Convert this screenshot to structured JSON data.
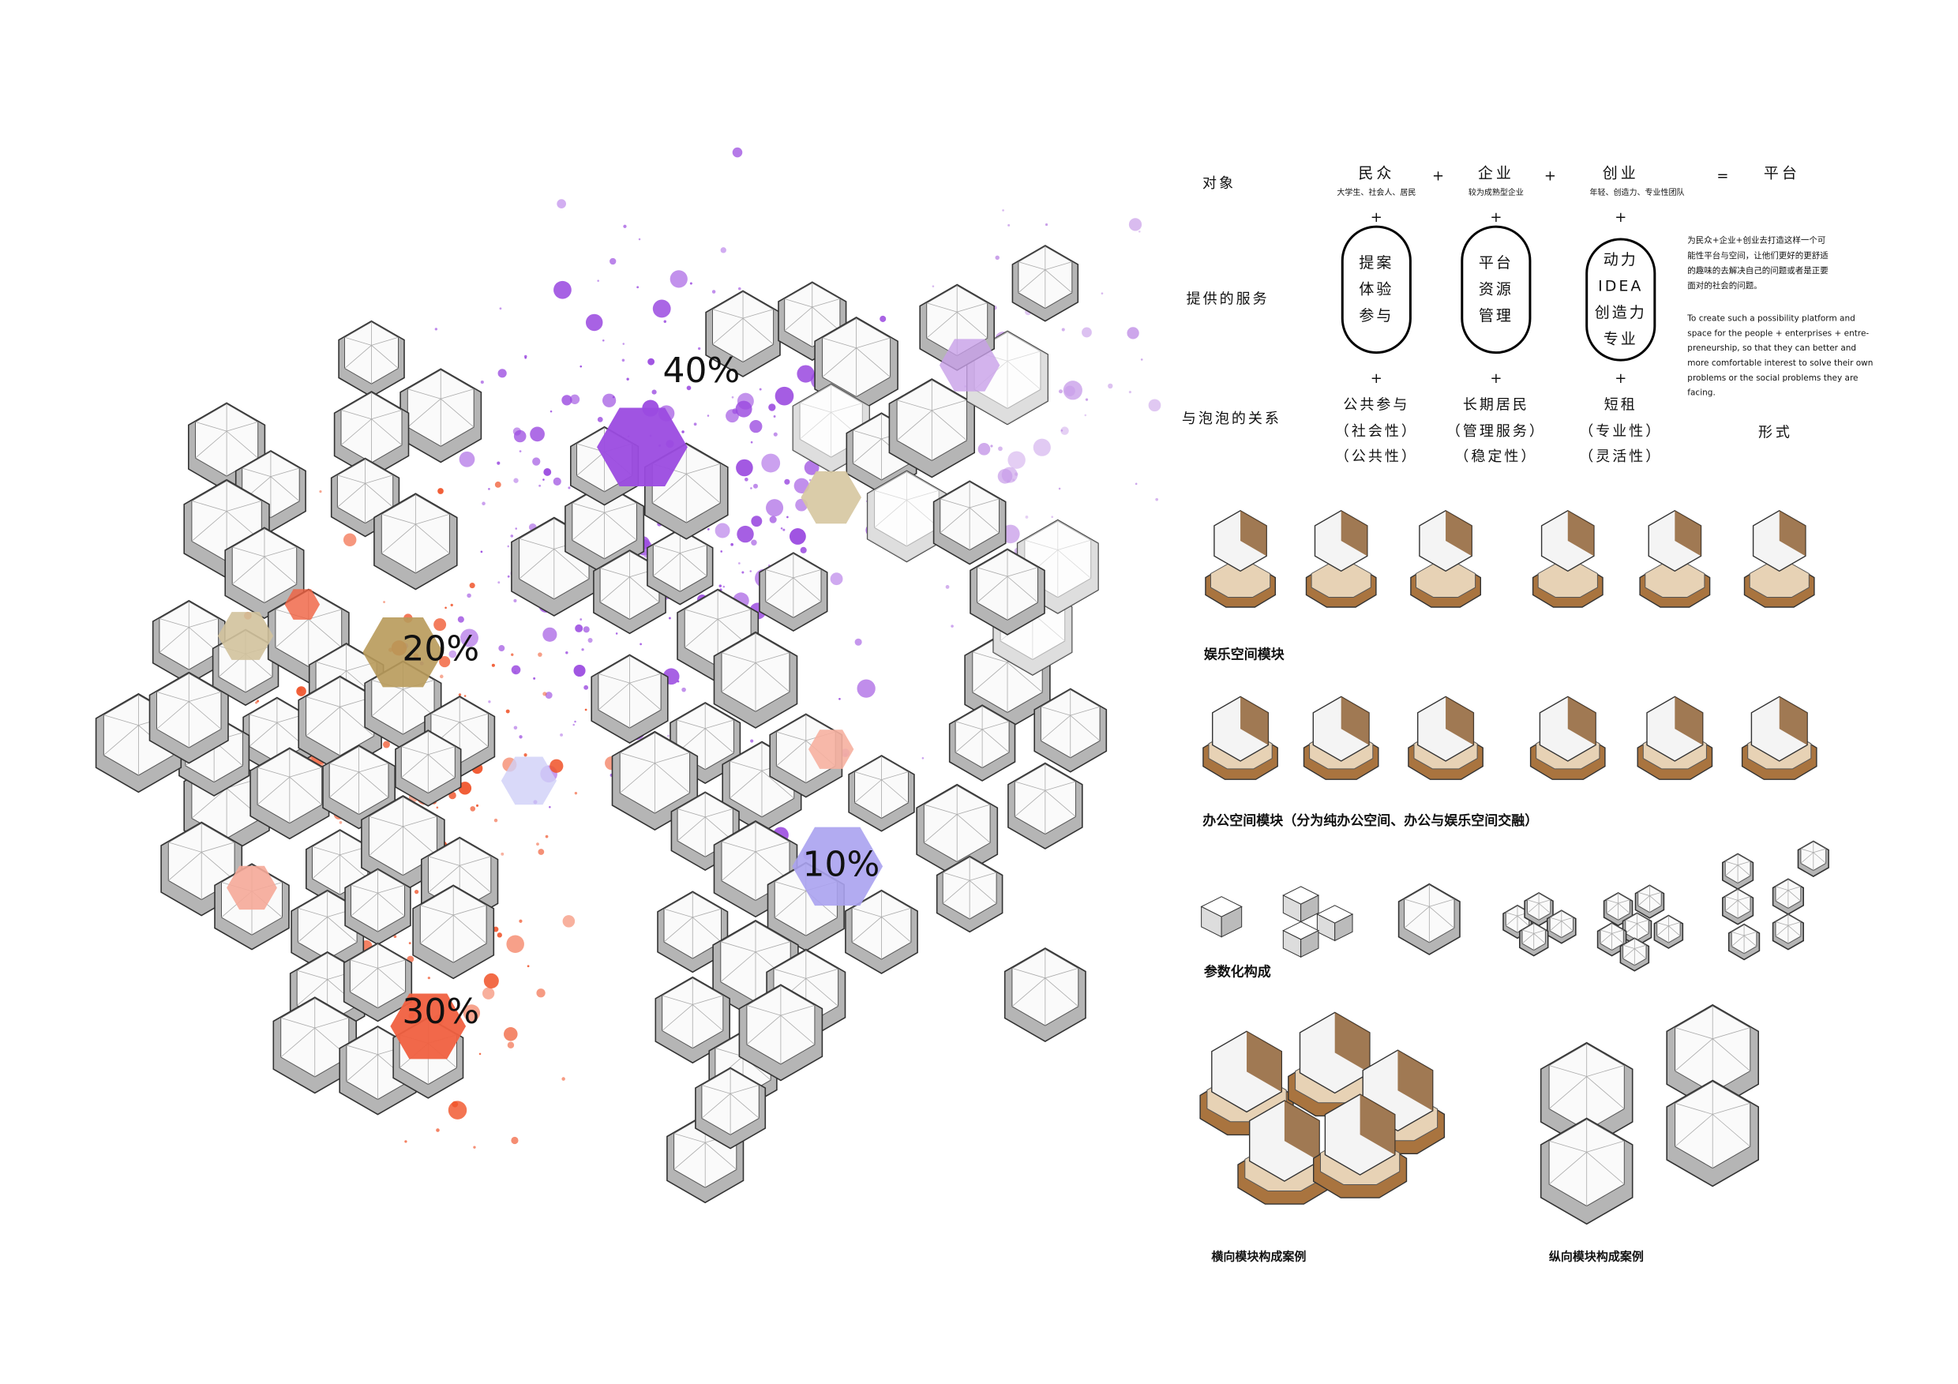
{
  "diagram": {
    "percent_labels": [
      "40%",
      "20%",
      "10%",
      "30%"
    ]
  },
  "table": {
    "row_labels": [
      "对象",
      "提供的服务",
      "与泡泡的关系"
    ],
    "columns": [
      {
        "name": "民众",
        "note": "大学生、社会人、居民",
        "services": [
          "提案",
          "体验",
          "参与"
        ],
        "relation": [
          "公共参与",
          "（社会性）",
          "（公共性）"
        ]
      },
      {
        "name": "企业",
        "note": "较为成熟型企业",
        "services": [
          "平台",
          "资源",
          "管理"
        ],
        "relation": [
          "长期居民",
          "（管理服务）",
          "（稳定性）"
        ]
      },
      {
        "name": "创业",
        "note": "年轻、创造力、专业性团队",
        "services": [
          "动力",
          "IDEA",
          "创造力",
          "专业"
        ],
        "relation": [
          "短租",
          "（专业性）",
          "（灵活性）"
        ]
      }
    ],
    "plus": "+",
    "equals": "=",
    "result": "平台",
    "form": "形式"
  },
  "description": {
    "zh": [
      "为民众+企业+创业去打造这样一个可",
      "能性平台与空间，让他们更好的更舒适",
      "的趣味的去解决自己的问题或者是正要",
      "面对的社会的问题。"
    ],
    "en": [
      "To create such a possibility platform and",
      "space for the people + enterprises + entre-",
      "preneurship, so that they can better and",
      "more comfortable interest to solve their own",
      "problems or the social problems they are",
      "facing."
    ]
  },
  "modules": {
    "entertainment": "娱乐空间模块",
    "office": "办公空间模块（分为纯办公空间、办公与娱乐空间交融）",
    "parametric": "参数化构成",
    "horizontal_case": "横向模块构成案例",
    "vertical_case": "纵向模块构成案例"
  }
}
